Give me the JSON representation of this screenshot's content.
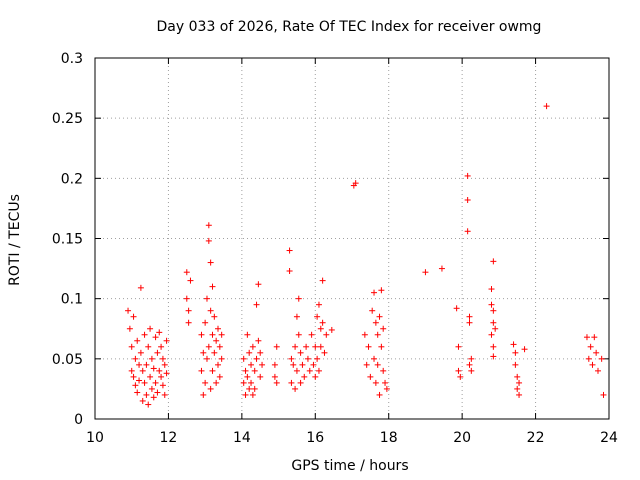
{
  "chart_data": {
    "type": "scatter",
    "title": "Day 033 of 2026, Rate Of TEC Index for receiver owmg",
    "xlabel": "GPS time / hours",
    "ylabel": "ROTI / TECUs",
    "xlim": [
      10,
      24
    ],
    "ylim": [
      0,
      0.3
    ],
    "xticks": [
      10,
      12,
      14,
      16,
      18,
      20,
      22,
      24
    ],
    "xtick_labels": [
      "10",
      "12",
      "14",
      "16",
      "18",
      "20",
      "22",
      "24"
    ],
    "yticks": [
      0,
      0.05,
      0.1,
      0.15,
      0.2,
      0.25,
      0.3
    ],
    "ytick_labels": [
      "0",
      "0.05",
      "0.1",
      "0.15",
      "0.2",
      "0.25",
      "0.3"
    ],
    "grid": true,
    "marker": "+",
    "color": "#ff0000",
    "series": [
      {
        "name": "ROTI",
        "points": [
          [
            10.9,
            0.09
          ],
          [
            10.95,
            0.075
          ],
          [
            11.0,
            0.06
          ],
          [
            11.0,
            0.04
          ],
          [
            11.05,
            0.085
          ],
          [
            11.05,
            0.035
          ],
          [
            11.1,
            0.05
          ],
          [
            11.1,
            0.028
          ],
          [
            11.15,
            0.065
          ],
          [
            11.15,
            0.022
          ],
          [
            11.2,
            0.045
          ],
          [
            11.2,
            0.032
          ],
          [
            11.25,
            0.109
          ],
          [
            11.25,
            0.055
          ],
          [
            11.3,
            0.04
          ],
          [
            11.3,
            0.015
          ],
          [
            11.35,
            0.03
          ],
          [
            11.35,
            0.07
          ],
          [
            11.4,
            0.02
          ],
          [
            11.4,
            0.045
          ],
          [
            11.45,
            0.012
          ],
          [
            11.45,
            0.06
          ],
          [
            11.5,
            0.035
          ],
          [
            11.5,
            0.075
          ],
          [
            11.55,
            0.025
          ],
          [
            11.55,
            0.05
          ],
          [
            11.6,
            0.042
          ],
          [
            11.6,
            0.018
          ],
          [
            11.65,
            0.068
          ],
          [
            11.65,
            0.03
          ],
          [
            11.7,
            0.055
          ],
          [
            11.7,
            0.022
          ],
          [
            11.75,
            0.04
          ],
          [
            11.75,
            0.072
          ],
          [
            11.8,
            0.035
          ],
          [
            11.8,
            0.06
          ],
          [
            11.85,
            0.028
          ],
          [
            11.85,
            0.05
          ],
          [
            11.9,
            0.045
          ],
          [
            11.9,
            0.02
          ],
          [
            11.95,
            0.065
          ],
          [
            11.95,
            0.038
          ],
          [
            12.5,
            0.122
          ],
          [
            12.5,
            0.1
          ],
          [
            12.55,
            0.09
          ],
          [
            12.55,
            0.08
          ],
          [
            12.6,
            0.115
          ],
          [
            12.9,
            0.07
          ],
          [
            12.9,
            0.04
          ],
          [
            12.95,
            0.055
          ],
          [
            12.95,
            0.02
          ],
          [
            13.0,
            0.08
          ],
          [
            13.0,
            0.03
          ],
          [
            13.05,
            0.1
          ],
          [
            13.05,
            0.05
          ],
          [
            13.1,
            0.148
          ],
          [
            13.1,
            0.06
          ],
          [
            13.1,
            0.161
          ],
          [
            13.15,
            0.13
          ],
          [
            13.15,
            0.09
          ],
          [
            13.15,
            0.025
          ],
          [
            13.2,
            0.11
          ],
          [
            13.2,
            0.07
          ],
          [
            13.2,
            0.04
          ],
          [
            13.25,
            0.085
          ],
          [
            13.25,
            0.055
          ],
          [
            13.3,
            0.065
          ],
          [
            13.3,
            0.03
          ],
          [
            13.35,
            0.075
          ],
          [
            13.35,
            0.045
          ],
          [
            13.4,
            0.06
          ],
          [
            13.4,
            0.035
          ],
          [
            13.45,
            0.05
          ],
          [
            13.45,
            0.07
          ],
          [
            14.05,
            0.03
          ],
          [
            14.05,
            0.05
          ],
          [
            14.1,
            0.02
          ],
          [
            14.1,
            0.04
          ],
          [
            14.15,
            0.07
          ],
          [
            14.15,
            0.035
          ],
          [
            14.2,
            0.025
          ],
          [
            14.2,
            0.055
          ],
          [
            14.25,
            0.03
          ],
          [
            14.25,
            0.045
          ],
          [
            14.3,
            0.02
          ],
          [
            14.3,
            0.06
          ],
          [
            14.35,
            0.04
          ],
          [
            14.35,
            0.025
          ],
          [
            14.4,
            0.095
          ],
          [
            14.4,
            0.05
          ],
          [
            14.45,
            0.112
          ],
          [
            14.45,
            0.065
          ],
          [
            14.5,
            0.035
          ],
          [
            14.5,
            0.055
          ],
          [
            14.55,
            0.045
          ],
          [
            14.9,
            0.045
          ],
          [
            14.9,
            0.035
          ],
          [
            14.95,
            0.06
          ],
          [
            14.95,
            0.03
          ],
          [
            15.3,
            0.14
          ],
          [
            15.3,
            0.123
          ],
          [
            15.35,
            0.05
          ],
          [
            15.35,
            0.03
          ],
          [
            15.4,
            0.045
          ],
          [
            15.45,
            0.06
          ],
          [
            15.45,
            0.025
          ],
          [
            15.5,
            0.085
          ],
          [
            15.5,
            0.04
          ],
          [
            15.55,
            0.07
          ],
          [
            15.55,
            0.1
          ],
          [
            15.6,
            0.03
          ],
          [
            15.6,
            0.055
          ],
          [
            15.65,
            0.045
          ],
          [
            15.7,
            0.035
          ],
          [
            15.75,
            0.06
          ],
          [
            15.8,
            0.05
          ],
          [
            15.85,
            0.04
          ],
          [
            15.9,
            0.07
          ],
          [
            15.95,
            0.045
          ],
          [
            16.0,
            0.06
          ],
          [
            16.0,
            0.035
          ],
          [
            16.05,
            0.085
          ],
          [
            16.05,
            0.05
          ],
          [
            16.1,
            0.095
          ],
          [
            16.1,
            0.04
          ],
          [
            16.15,
            0.075
          ],
          [
            16.15,
            0.06
          ],
          [
            16.2,
            0.115
          ],
          [
            16.2,
            0.08
          ],
          [
            16.25,
            0.055
          ],
          [
            16.3,
            0.07
          ],
          [
            16.45,
            0.074
          ],
          [
            17.05,
            0.194
          ],
          [
            17.1,
            0.196
          ],
          [
            17.35,
            0.07
          ],
          [
            17.4,
            0.045
          ],
          [
            17.45,
            0.06
          ],
          [
            17.5,
            0.035
          ],
          [
            17.55,
            0.09
          ],
          [
            17.6,
            0.105
          ],
          [
            17.6,
            0.05
          ],
          [
            17.65,
            0.08
          ],
          [
            17.65,
            0.03
          ],
          [
            17.7,
            0.07
          ],
          [
            17.7,
            0.045
          ],
          [
            17.75,
            0.085
          ],
          [
            17.75,
            0.02
          ],
          [
            17.8,
            0.107
          ],
          [
            17.8,
            0.06
          ],
          [
            17.85,
            0.075
          ],
          [
            17.85,
            0.04
          ],
          [
            17.9,
            0.03
          ],
          [
            17.95,
            0.025
          ],
          [
            19.0,
            0.122
          ],
          [
            19.45,
            0.125
          ],
          [
            19.85,
            0.092
          ],
          [
            19.9,
            0.06
          ],
          [
            19.9,
            0.04
          ],
          [
            19.95,
            0.035
          ],
          [
            20.15,
            0.202
          ],
          [
            20.15,
            0.182
          ],
          [
            20.15,
            0.156
          ],
          [
            20.2,
            0.085
          ],
          [
            20.2,
            0.08
          ],
          [
            20.25,
            0.05
          ],
          [
            20.25,
            0.04
          ],
          [
            20.2,
            0.045
          ],
          [
            20.85,
            0.131
          ],
          [
            20.8,
            0.108
          ],
          [
            20.8,
            0.095
          ],
          [
            20.85,
            0.09
          ],
          [
            20.85,
            0.08
          ],
          [
            20.8,
            0.07
          ],
          [
            20.85,
            0.06
          ],
          [
            20.85,
            0.052
          ],
          [
            20.9,
            0.075
          ],
          [
            21.4,
            0.062
          ],
          [
            21.45,
            0.055
          ],
          [
            21.45,
            0.045
          ],
          [
            21.5,
            0.035
          ],
          [
            21.5,
            0.025
          ],
          [
            21.55,
            0.03
          ],
          [
            21.55,
            0.02
          ],
          [
            21.7,
            0.058
          ],
          [
            22.3,
            0.26
          ],
          [
            23.4,
            0.068
          ],
          [
            23.45,
            0.05
          ],
          [
            23.5,
            0.06
          ],
          [
            23.55,
            0.045
          ],
          [
            23.6,
            0.068
          ],
          [
            23.65,
            0.055
          ],
          [
            23.7,
            0.04
          ],
          [
            23.8,
            0.05
          ],
          [
            23.85,
            0.02
          ]
        ]
      }
    ]
  }
}
